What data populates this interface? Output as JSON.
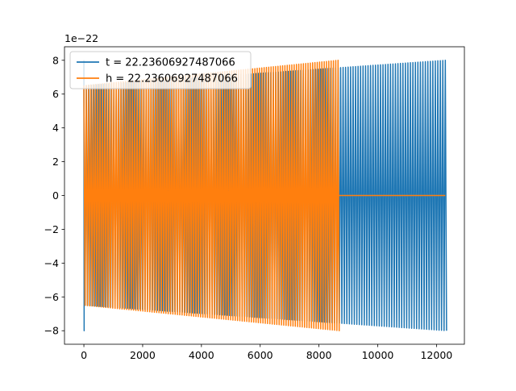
{
  "chart_data": {
    "type": "line",
    "title": "",
    "xlabel": "",
    "ylabel": "",
    "y_offset_label": "1e−22",
    "xlim": [
      -660,
      12950
    ],
    "ylim": [
      -8.8,
      8.8
    ],
    "xticks": [
      0,
      2000,
      4000,
      6000,
      8000,
      10000,
      12000
    ],
    "xtick_labels": [
      "0",
      "2000",
      "4000",
      "6000",
      "8000",
      "10000",
      "12000"
    ],
    "yticks": [
      -8,
      -6,
      -4,
      -2,
      0,
      2,
      4,
      6,
      8
    ],
    "ytick_labels": [
      "−8",
      "−6",
      "−4",
      "−2",
      "0",
      "2",
      "4",
      "6",
      "8"
    ],
    "grid": false,
    "legend_position": "top-left",
    "series": [
      {
        "name": "t = 22.23606927487066",
        "color": "#1f77b4",
        "x_range": [
          0,
          12300
        ],
        "cycles": 145,
        "amplitude_start": 6.5,
        "amplitude_end": 8.0,
        "initial_spike": 8.0
      },
      {
        "name": "h = 22.23606927487066",
        "color": "#ff7f0e",
        "x_range": [
          0,
          8650
        ],
        "cycles": 110,
        "amplitude_start": 6.5,
        "amplitude_end": 8.0,
        "tail_x_range": [
          8650,
          12300
        ],
        "tail_value": 0
      }
    ]
  }
}
